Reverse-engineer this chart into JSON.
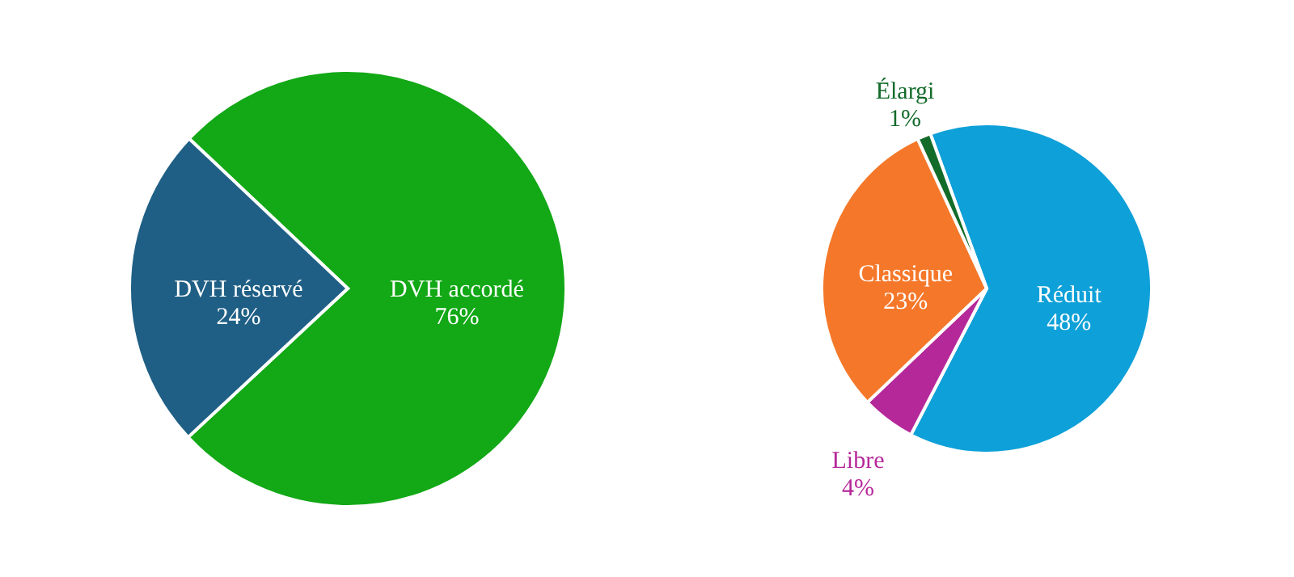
{
  "chart_data": [
    {
      "type": "pie",
      "categories": [
        "DVH accordé",
        "DVH réservé"
      ],
      "values": [
        76,
        24
      ],
      "colors": [
        "#12a816",
        "#1f5f85"
      ],
      "value_labels": [
        "76%",
        "24%"
      ]
    },
    {
      "type": "pie",
      "categories": [
        "Réduit",
        "Libre",
        "Classique",
        "Élargi"
      ],
      "values": [
        48,
        4,
        23,
        1
      ],
      "colors": [
        "#0ea0d8",
        "#b5289a",
        "#f5782a",
        "#136b2a"
      ],
      "value_labels": [
        "48%",
        "4%",
        "23%",
        "1%"
      ]
    }
  ]
}
